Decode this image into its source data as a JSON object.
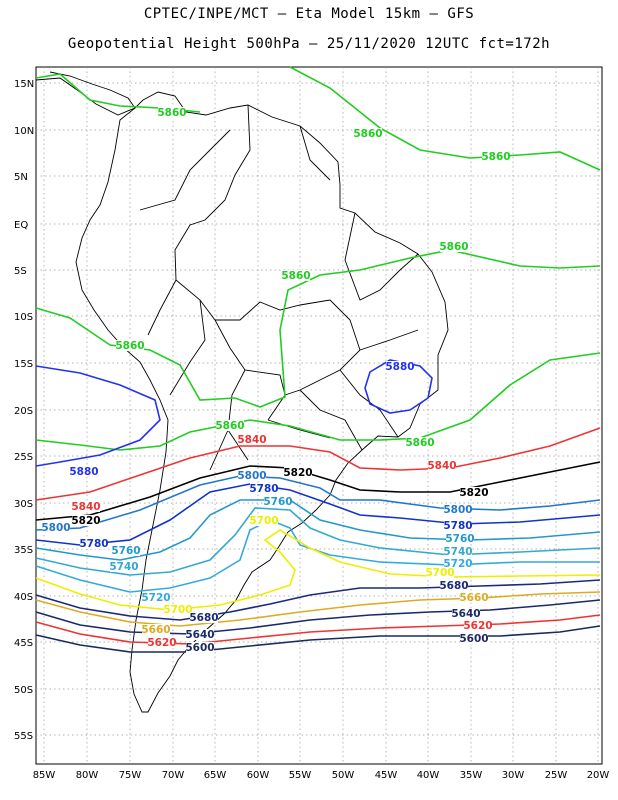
{
  "title_line1": "CPTEC/INPE/MCT –  Eta Model 15km – GFS",
  "title_line2": "Geopotential Height 500hPa – 25/11/2020 12UTC fct=172h",
  "lat_labels": [
    "15N",
    "10N",
    "5N",
    "EQ",
    "5S",
    "10S",
    "15S",
    "20S",
    "25S",
    "30S",
    "35S",
    "40S",
    "45S",
    "50S",
    "55S"
  ],
  "lon_labels": [
    "85W",
    "80W",
    "75W",
    "70W",
    "65W",
    "60W",
    "55W",
    "50W",
    "45W",
    "40W",
    "35W",
    "30W",
    "25W",
    "20W"
  ],
  "contour_colors": {
    "5860": "#22cc22",
    "5880": "#2233ee",
    "5840": "#ee3333",
    "5820": "#000000",
    "5800": "#2277cc",
    "5780": "#1133cc",
    "5760": "#2299cc",
    "5740": "#33aacc",
    "5720": "#33aadd",
    "5700": "#eeee00",
    "5680": "#1a2a7a",
    "5660": "#ddaa22",
    "5640": "#1a2a6a",
    "5620": "#ee3333",
    "5600": "#1a2a5a"
  },
  "contour_labels": [
    {
      "text": "5860",
      "level": "5860"
    },
    {
      "text": "5860",
      "level": "5860"
    },
    {
      "text": "5860",
      "level": "5860"
    },
    {
      "text": "5860",
      "level": "5860"
    },
    {
      "text": "5860",
      "level": "5860"
    },
    {
      "text": "5860",
      "level": "5860"
    },
    {
      "text": "5860",
      "level": "5860"
    },
    {
      "text": "5860",
      "level": "5860"
    },
    {
      "text": "5880",
      "level": "5880"
    },
    {
      "text": "5880",
      "level": "5880"
    },
    {
      "text": "5840",
      "level": "5840"
    },
    {
      "text": "5840",
      "level": "5840"
    },
    {
      "text": "5840",
      "level": "5840"
    },
    {
      "text": "5820",
      "level": "5820"
    },
    {
      "text": "5820",
      "level": "5820"
    },
    {
      "text": "5820",
      "level": "5820"
    },
    {
      "text": "5800",
      "level": "5800"
    },
    {
      "text": "5800",
      "level": "5800"
    },
    {
      "text": "5800",
      "level": "5800"
    },
    {
      "text": "5780",
      "level": "5780"
    },
    {
      "text": "5780",
      "level": "5780"
    },
    {
      "text": "5780",
      "level": "5780"
    },
    {
      "text": "5760",
      "level": "5760"
    },
    {
      "text": "5760",
      "level": "5760"
    },
    {
      "text": "5760",
      "level": "5760"
    },
    {
      "text": "5740",
      "level": "5740"
    },
    {
      "text": "5740",
      "level": "5740"
    },
    {
      "text": "5720",
      "level": "5720"
    },
    {
      "text": "5720",
      "level": "5720"
    },
    {
      "text": "5700",
      "level": "5700"
    },
    {
      "text": "5700",
      "level": "5700"
    },
    {
      "text": "5700",
      "level": "5700"
    },
    {
      "text": "5680",
      "level": "5680"
    },
    {
      "text": "5680",
      "level": "5680"
    },
    {
      "text": "5660",
      "level": "5660"
    },
    {
      "text": "5660",
      "level": "5660"
    },
    {
      "text": "5640",
      "level": "5640"
    },
    {
      "text": "5640",
      "level": "5640"
    },
    {
      "text": "5620",
      "level": "5620"
    },
    {
      "text": "5620",
      "level": "5620"
    },
    {
      "text": "5600",
      "level": "5600"
    },
    {
      "text": "5600",
      "level": "5600"
    }
  ]
}
